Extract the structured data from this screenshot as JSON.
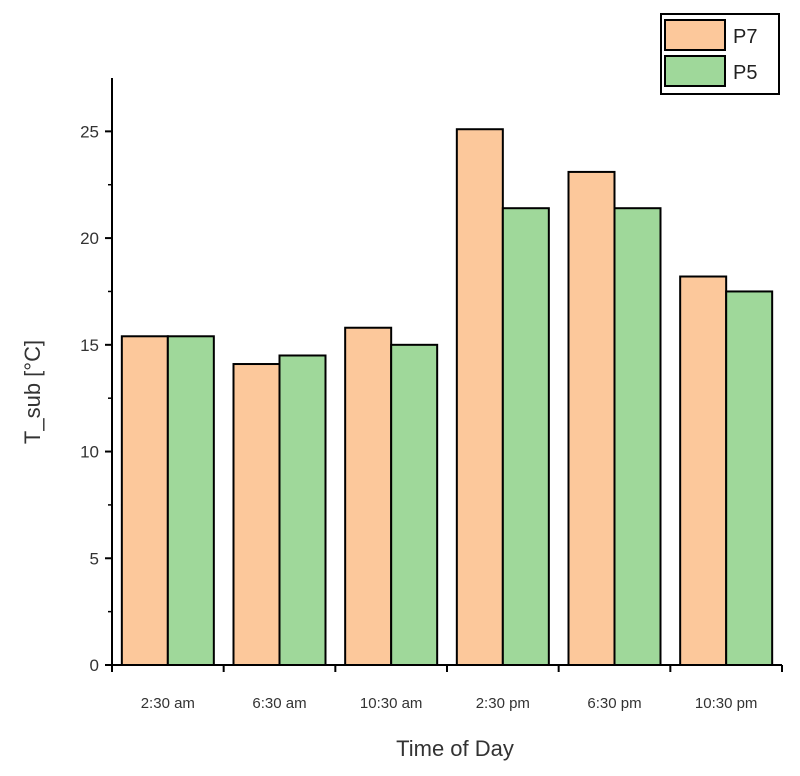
{
  "chart_data": {
    "type": "bar",
    "categories": [
      "2:30 am",
      "6:30 am",
      "10:30 am",
      "2:30 pm",
      "6:30 pm",
      "10:30 pm"
    ],
    "series": [
      {
        "name": "P7",
        "color": "#fcc89b",
        "values": [
          15.4,
          14.1,
          15.8,
          25.1,
          23.1,
          18.2
        ]
      },
      {
        "name": "P5",
        "color": "#9fd89a",
        "values": [
          15.4,
          14.5,
          15.0,
          21.4,
          21.4,
          17.5
        ]
      }
    ],
    "xlabel": "Time of Day",
    "ylabel": "T_sub [°C]",
    "ylim": [
      0,
      27.5
    ],
    "yticks": [
      0,
      5,
      10,
      15,
      20,
      25
    ],
    "grid": false,
    "legend": "top-right"
  }
}
